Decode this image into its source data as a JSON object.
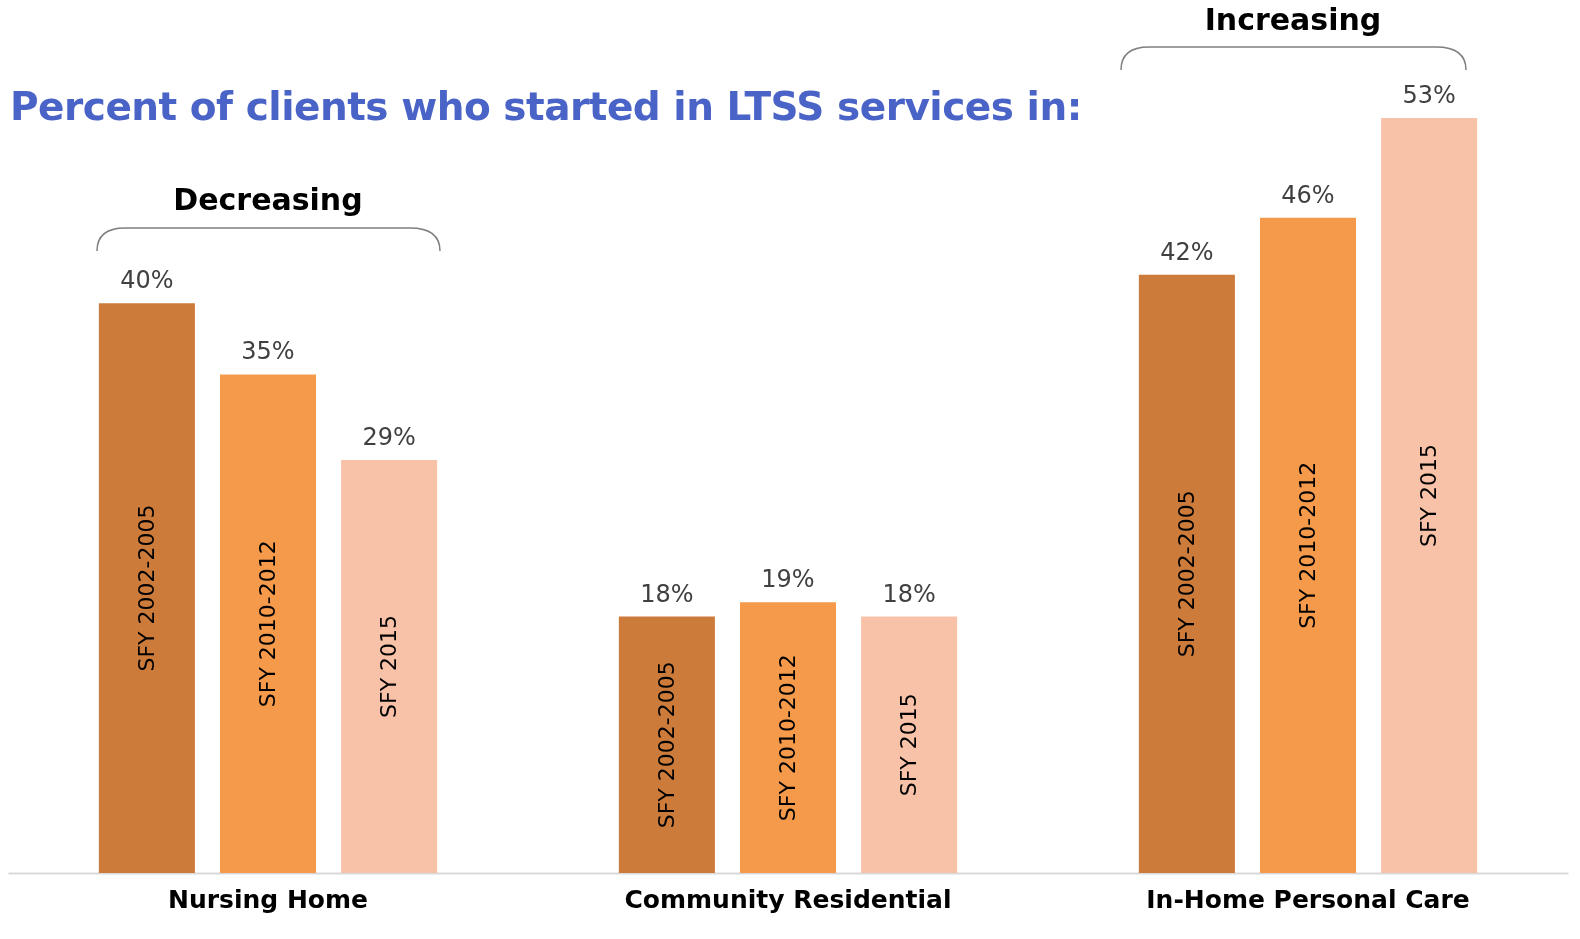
{
  "chart_data": {
    "type": "bar",
    "title": "Percent of clients who started in LTSS services in:",
    "categories": [
      "Nursing Home",
      "Community Residential",
      "In-Home Personal Care"
    ],
    "series": [
      {
        "name": "SFY 2002-2005",
        "color": "#cd7b3a",
        "values": [
          40,
          18,
          42
        ],
        "value_labels": [
          "40%",
          "18%",
          "42%"
        ]
      },
      {
        "name": "SFY 2010-2012",
        "color": "#f5994a",
        "values": [
          35,
          19,
          46
        ],
        "value_labels": [
          "35%",
          "19%",
          "46%"
        ]
      },
      {
        "name": "SFY 2015",
        "color": "#f8c2a8",
        "values": [
          29,
          18,
          53
        ],
        "value_labels": [
          "29%",
          "18%",
          "53%"
        ]
      }
    ],
    "annotations": [
      "Decreasing",
      "Increasing"
    ],
    "legend": false,
    "grid": false
  }
}
